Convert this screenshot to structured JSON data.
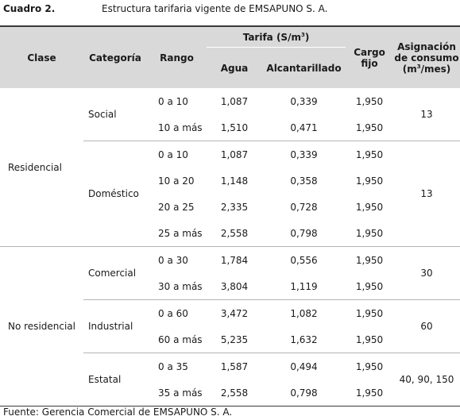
{
  "caption": {
    "number": "Cuadro 2.",
    "title": "Estructura tarifaria vigente de EMSAPUNO S. A."
  },
  "header": {
    "clase": "Clase",
    "categoria": "Categoría",
    "rango": "Rango",
    "tarifa_prefix": "Tarifa (S/m",
    "tarifa_sup": "3",
    "tarifa_suffix": ")",
    "agua": "Agua",
    "alcantarillado": "Alcantarillado",
    "cargo_1": "Cargo",
    "cargo_2": "fijo",
    "asig_1": "Asignación",
    "asig_2": "de consumo",
    "asig_3_prefix": "(m",
    "asig_3_sup": "3",
    "asig_3_suffix": "/mes)"
  },
  "rows": [
    {
      "rango": "0 a 10",
      "agua": "1,087",
      "alc": "0,339",
      "cargo": "1,950"
    },
    {
      "rango": "10 a más",
      "agua": "1,510",
      "alc": "0,471",
      "cargo": "1,950"
    },
    {
      "rango": "0 a 10",
      "agua": "1,087",
      "alc": "0,339",
      "cargo": "1,950"
    },
    {
      "rango": "10 a 20",
      "agua": "1,148",
      "alc": "0,358",
      "cargo": "1,950"
    },
    {
      "rango": "20 a 25",
      "agua": "2,335",
      "alc": "0,728",
      "cargo": "1,950"
    },
    {
      "rango": "25 a más",
      "agua": "2,558",
      "alc": "0,798",
      "cargo": "1,950"
    },
    {
      "rango": "0 a 30",
      "agua": "1,784",
      "alc": "0,556",
      "cargo": "1,950"
    },
    {
      "rango": "30 a más",
      "agua": "3,804",
      "alc": "1,119",
      "cargo": "1,950"
    },
    {
      "rango": "0 a 60",
      "agua": "3,472",
      "alc": "1,082",
      "cargo": "1,950"
    },
    {
      "rango": "60 a más",
      "agua": "5,235",
      "alc": "1,632",
      "cargo": "1,950"
    },
    {
      "rango": "0 a 35",
      "agua": "1,587",
      "alc": "0,494",
      "cargo": "1,950"
    },
    {
      "rango": "35 a más",
      "agua": "2,558",
      "alc": "0,798",
      "cargo": "1,950"
    }
  ],
  "groups": {
    "residencial": "Residencial",
    "no_residencial": "No residencial",
    "social": "Social",
    "domestico": "Doméstico",
    "comercial": "Comercial",
    "industrial": "Industrial",
    "estatal": "Estatal",
    "asig_social": "13",
    "asig_domestico": "13",
    "asig_comercial": "30",
    "asig_industrial": "60",
    "asig_estatal": "40, 90, 150"
  },
  "source": "Fuente: Gerencia Comercial de EMSAPUNO S. A."
}
